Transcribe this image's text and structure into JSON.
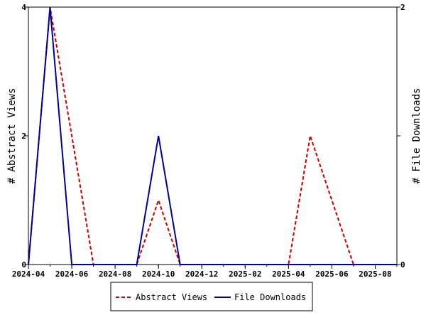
{
  "chart_data": {
    "type": "line",
    "title": "",
    "x_ticks": [
      "2024-04",
      "2024-06",
      "2024-08",
      "2024-10",
      "2024-12",
      "2025-02",
      "2025-04",
      "2025-06",
      "2025-08"
    ],
    "x_range": [
      "2024-04",
      "2025-09"
    ],
    "y_left": {
      "label": "# Abstract Views",
      "range": [
        0,
        4
      ],
      "ticks": [
        "0",
        "2",
        "4"
      ]
    },
    "y_right": {
      "label": "# File Downloads",
      "range": [
        0,
        2
      ],
      "ticks": [
        "0",
        "1",
        "2"
      ]
    },
    "legend_position": "bottom",
    "series": [
      {
        "name": "Abstract Views",
        "axis": "left",
        "color": "#cc0000",
        "dash": "dashed",
        "points": [
          {
            "x": "2024-04",
            "y": 0
          },
          {
            "x": "2024-05",
            "y": 4
          },
          {
            "x": "2024-06",
            "y": 2
          },
          {
            "x": "2024-07",
            "y": 0
          },
          {
            "x": "2024-08",
            "y": 0
          },
          {
            "x": "2024-09",
            "y": 0
          },
          {
            "x": "2024-10",
            "y": 1
          },
          {
            "x": "2024-11",
            "y": 0
          },
          {
            "x": "2024-12",
            "y": 0
          },
          {
            "x": "2025-01",
            "y": 0
          },
          {
            "x": "2025-02",
            "y": 0
          },
          {
            "x": "2025-03",
            "y": 0
          },
          {
            "x": "2025-04",
            "y": 0
          },
          {
            "x": "2025-05",
            "y": 2
          },
          {
            "x": "2025-06",
            "y": 1
          },
          {
            "x": "2025-07",
            "y": 0
          },
          {
            "x": "2025-08",
            "y": 0
          },
          {
            "x": "2025-09",
            "y": 0
          }
        ]
      },
      {
        "name": "File Downloads",
        "axis": "right",
        "color": "#000099",
        "dash": "solid",
        "points": [
          {
            "x": "2024-04",
            "y": 0
          },
          {
            "x": "2024-05",
            "y": 2
          },
          {
            "x": "2024-06",
            "y": 0
          },
          {
            "x": "2024-07",
            "y": 0
          },
          {
            "x": "2024-08",
            "y": 0
          },
          {
            "x": "2024-09",
            "y": 0
          },
          {
            "x": "2024-10",
            "y": 1
          },
          {
            "x": "2024-11",
            "y": 0
          },
          {
            "x": "2024-12",
            "y": 0
          },
          {
            "x": "2025-01",
            "y": 0
          },
          {
            "x": "2025-02",
            "y": 0
          },
          {
            "x": "2025-03",
            "y": 0
          },
          {
            "x": "2025-04",
            "y": 0
          },
          {
            "x": "2025-05",
            "y": 0
          },
          {
            "x": "2025-06",
            "y": 0
          },
          {
            "x": "2025-07",
            "y": 0
          },
          {
            "x": "2025-08",
            "y": 0
          },
          {
            "x": "2025-09",
            "y": 0
          }
        ]
      }
    ]
  }
}
